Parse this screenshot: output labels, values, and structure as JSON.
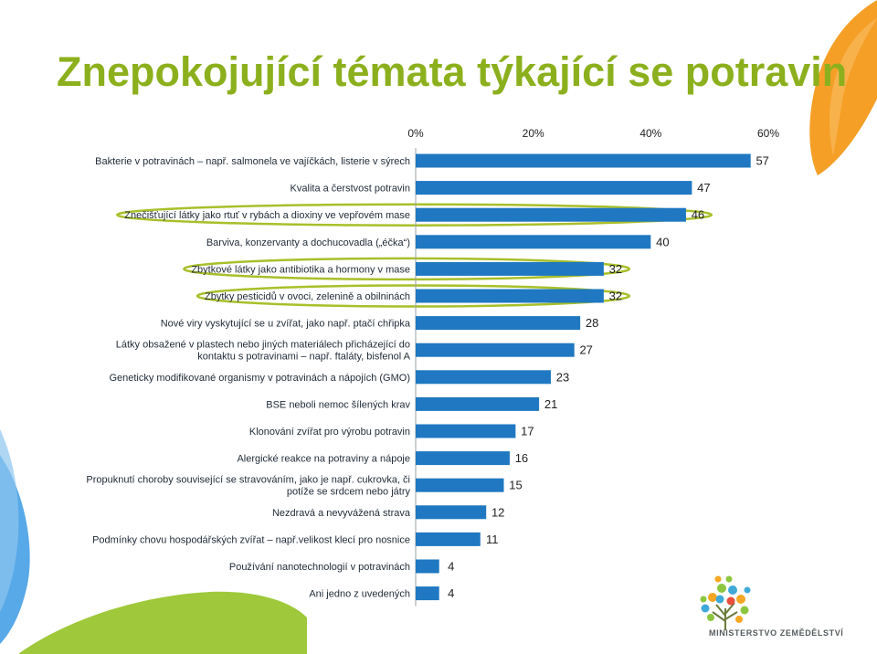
{
  "slide": {
    "title": "Znepokojující témata týkající se potravin"
  },
  "colors": {
    "title": "#8cb01d",
    "bar": "#1f78c1",
    "highlight_ellipse": "#a9bf2a",
    "deco_orange": "#f59f26",
    "deco_blue": "#58a9e8",
    "deco_green": "#9fc93b",
    "logo_text": "#555b5e"
  },
  "chart_data": {
    "type": "bar",
    "orientation": "horizontal",
    "title": "",
    "xlabel": "",
    "ylabel": "",
    "xlim": [
      0,
      60
    ],
    "x_ticks": [
      "0%",
      "20%",
      "40%",
      "60%"
    ],
    "x_axis_position": "top",
    "grid": false,
    "categories": [
      [
        "Bakterie v potravinách – např. salmonela ve vajíčkách, listerie v sýrech"
      ],
      [
        "Kvalita a čerstvost potravin"
      ],
      [
        "Znečišťující látky jako rtuť v rybách a dioxiny ve vepřovém mase"
      ],
      [
        "Barviva, konzervanty a dochucovadla („éčka“)"
      ],
      [
        "Zbytkové látky jako antibiotika a hormony v mase"
      ],
      [
        "Zbytky pesticidů v ovoci, zelenině a obilninách"
      ],
      [
        "Nové viry vyskytující se u zvířat, jako např. ptačí chřipka"
      ],
      [
        "Látky obsažené v plastech nebo jiných materiálech přicházející do",
        "kontaktu s potravinami – např. ftaláty, bisfenol A"
      ],
      [
        "Geneticky modifikované  organismy v potravinách a nápojích (GMO)"
      ],
      [
        "BSE neboli nemoc šílených krav"
      ],
      [
        "Klonování zvířat pro výrobu potravin"
      ],
      [
        "Alergické reakce na potraviny a nápoje"
      ],
      [
        "Propuknutí choroby související se stravováním, jako je např. cukrovka, či",
        "potíže se srdcem nebo játry"
      ],
      [
        "Nezdravá a nevyvážená strava"
      ],
      [
        "Podmínky chovu hospodářských zvířat – např.velikost klecí pro nosnice"
      ],
      [
        "Používání nanotechnologií v potravinách"
      ],
      [
        "Ani jedno z uvedených"
      ]
    ],
    "values": [
      57,
      47,
      46,
      40,
      32,
      32,
      28,
      27,
      23,
      21,
      17,
      16,
      15,
      12,
      11,
      4,
      4
    ],
    "highlighted_categories": [
      2,
      4,
      5
    ]
  },
  "logo": {
    "text": "MINISTERSTVO ZEMĚDĚLSTVÍ"
  }
}
